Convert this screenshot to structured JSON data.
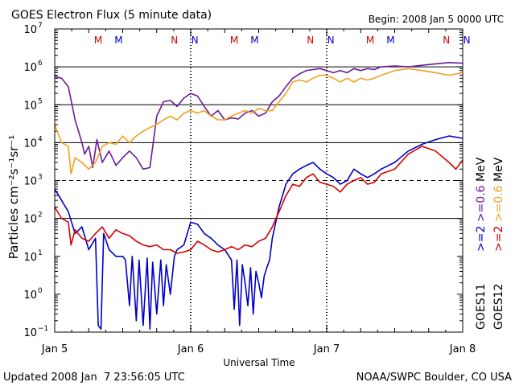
{
  "chart_data": {
    "type": "line",
    "title": "GOES Electron Flux (5 minute data)",
    "begin_label": "Begin: 2008 Jan 5 0000 UTC",
    "xlabel": "Universal Time",
    "ylabel": "Particles cm⁻²s⁻¹sr⁻¹",
    "footer_left": "Updated 2008 Jan  7 23:56:05 UTC",
    "footer_right": "NOAA/SWPC Boulder, CO USA",
    "y_scale": "log",
    "ylim": [
      0.1,
      10000000
    ],
    "xlim": [
      0,
      3
    ],
    "x_ticks": [
      {
        "x": 0,
        "label": "Jan 5"
      },
      {
        "x": 1,
        "label": "Jan 6"
      },
      {
        "x": 2,
        "label": "Jan 7"
      },
      {
        "x": 3,
        "label": "Jan 8"
      }
    ],
    "y_ticks": [
      {
        "exp": -1,
        "base": "10",
        "sup": "−1"
      },
      {
        "exp": 0,
        "base": "10",
        "sup": "0"
      },
      {
        "exp": 1,
        "base": "10",
        "sup": "1"
      },
      {
        "exp": 2,
        "base": "10",
        "sup": "2"
      },
      {
        "exp": 3,
        "base": "10",
        "sup": "3"
      },
      {
        "exp": 4,
        "base": "10",
        "sup": "4"
      },
      {
        "exp": 5,
        "base": "10",
        "sup": "5"
      },
      {
        "exp": 6,
        "base": "10",
        "sup": "6"
      },
      {
        "exp": 7,
        "base": "10",
        "sup": "7"
      }
    ],
    "grid": "solid at 10^2, 10^4, 10^5, 10^6; dashed at 10^3",
    "markers": [
      {
        "x": 0.32,
        "label": "M",
        "color": "#d40000"
      },
      {
        "x": 0.47,
        "label": "M",
        "color": "#0000c8"
      },
      {
        "x": 0.88,
        "label": "N",
        "color": "#d40000"
      },
      {
        "x": 1.03,
        "label": "N",
        "color": "#0000c8"
      },
      {
        "x": 1.32,
        "label": "M",
        "color": "#d40000"
      },
      {
        "x": 1.47,
        "label": "M",
        "color": "#0000c8"
      },
      {
        "x": 1.88,
        "label": "N",
        "color": "#d40000"
      },
      {
        "x": 2.03,
        "label": "N",
        "color": "#0000c8"
      },
      {
        "x": 2.32,
        "label": "M",
        "color": "#d40000"
      },
      {
        "x": 2.47,
        "label": "M",
        "color": "#0000c8"
      },
      {
        "x": 2.88,
        "label": "N",
        "color": "#d40000"
      },
      {
        "x": 3.03,
        "label": "N",
        "color": "#0000c8"
      }
    ],
    "legend": {
      "placement": "right, vertical",
      "columns": [
        {
          "satellite": "GOES11",
          "items": [
            {
              "text": ">=2",
              "color": "#0000c8"
            },
            {
              "text": ">=0.6",
              "color": "#6a1b9a"
            }
          ]
        },
        {
          "satellite": "GOES12",
          "items": [
            {
              "text": ">=2",
              "color": "#d40000"
            },
            {
              "text": ">=0.6",
              "color": "#f0a020"
            }
          ]
        }
      ],
      "unit": "MeV"
    },
    "series": [
      {
        "color": "#6a1b9a",
        "points": [
          [
            0,
            560000.0
          ],
          [
            0.05,
            500000.0
          ],
          [
            0.1,
            300000.0
          ],
          [
            0.15,
            40000.0
          ],
          [
            0.2,
            10000.0
          ],
          [
            0.22,
            5000.0
          ],
          [
            0.25,
            8000.0
          ],
          [
            0.28,
            2200.0
          ],
          [
            0.31,
            12000.0
          ],
          [
            0.35,
            3000.0
          ],
          [
            0.4,
            6000.0
          ],
          [
            0.45,
            2500.0
          ],
          [
            0.5,
            4000.0
          ],
          [
            0.55,
            6000.0
          ],
          [
            0.6,
            4000.0
          ],
          [
            0.65,
            2000.0
          ],
          [
            0.7,
            2200.0
          ],
          [
            0.75,
            50000.0
          ],
          [
            0.8,
            120000.0
          ],
          [
            0.85,
            130000.0
          ],
          [
            0.9,
            90000.0
          ],
          [
            0.95,
            150000.0
          ],
          [
            1,
            200000.0
          ],
          [
            1.05,
            170000.0
          ],
          [
            1.1,
            90000.0
          ],
          [
            1.15,
            50000.0
          ],
          [
            1.2,
            70000.0
          ],
          [
            1.25,
            40000.0
          ],
          [
            1.3,
            45000.0
          ],
          [
            1.35,
            42000.0
          ],
          [
            1.4,
            60000.0
          ],
          [
            1.45,
            70000.0
          ],
          [
            1.5,
            50000.0
          ],
          [
            1.55,
            60000.0
          ],
          [
            1.6,
            120000.0
          ],
          [
            1.65,
            170000.0
          ],
          [
            1.7,
            300000.0
          ],
          [
            1.75,
            500000.0
          ],
          [
            1.8,
            650000.0
          ],
          [
            1.85,
            800000.0
          ],
          [
            1.9,
            850000.0
          ],
          [
            1.95,
            900000.0
          ],
          [
            2,
            800000.0
          ],
          [
            2.05,
            700000.0
          ],
          [
            2.1,
            800000.0
          ],
          [
            2.15,
            700000.0
          ],
          [
            2.2,
            900000.0
          ],
          [
            2.25,
            800000.0
          ],
          [
            2.3,
            900000.0
          ],
          [
            2.35,
            850000.0
          ],
          [
            2.4,
            1000000.0
          ],
          [
            2.5,
            1050000.0
          ],
          [
            2.6,
            1000000.0
          ],
          [
            2.7,
            1100000.0
          ],
          [
            2.8,
            1200000.0
          ],
          [
            2.9,
            1300000.0
          ],
          [
            3,
            1250000.0
          ]
        ]
      },
      {
        "color": "#f0a020",
        "points": [
          [
            0,
            30000.0
          ],
          [
            0.05,
            10000.0
          ],
          [
            0.1,
            8000.0
          ],
          [
            0.12,
            1500.0
          ],
          [
            0.15,
            4000.0
          ],
          [
            0.2,
            3000.0
          ],
          [
            0.25,
            2000.0
          ],
          [
            0.3,
            3000.0
          ],
          [
            0.35,
            8000.0
          ],
          [
            0.4,
            10000.0
          ],
          [
            0.45,
            9000.0
          ],
          [
            0.5,
            15000.0
          ],
          [
            0.55,
            10000.0
          ],
          [
            0.6,
            15000.0
          ],
          [
            0.65,
            20000.0
          ],
          [
            0.7,
            25000.0
          ],
          [
            0.75,
            30000.0
          ],
          [
            0.8,
            40000.0
          ],
          [
            0.85,
            50000.0
          ],
          [
            0.9,
            40000.0
          ],
          [
            0.95,
            60000.0
          ],
          [
            1,
            70000.0
          ],
          [
            1.05,
            60000.0
          ],
          [
            1.1,
            70000.0
          ],
          [
            1.15,
            50000.0
          ],
          [
            1.2,
            40000.0
          ],
          [
            1.25,
            40000.0
          ],
          [
            1.3,
            50000.0
          ],
          [
            1.35,
            60000.0
          ],
          [
            1.4,
            70000.0
          ],
          [
            1.45,
            60000.0
          ],
          [
            1.5,
            80000.0
          ],
          [
            1.55,
            70000.0
          ],
          [
            1.6,
            70000.0
          ],
          [
            1.65,
            120000.0
          ],
          [
            1.7,
            200000.0
          ],
          [
            1.75,
            400000.0
          ],
          [
            1.8,
            450000.0
          ],
          [
            1.85,
            400000.0
          ],
          [
            1.9,
            500000.0
          ],
          [
            1.95,
            600000.0
          ],
          [
            2,
            600000.0
          ],
          [
            2.05,
            500000.0
          ],
          [
            2.1,
            400000.0
          ],
          [
            2.15,
            500000.0
          ],
          [
            2.2,
            400000.0
          ],
          [
            2.25,
            500000.0
          ],
          [
            2.3,
            450000.0
          ],
          [
            2.35,
            500000.0
          ],
          [
            2.4,
            600000.0
          ],
          [
            2.5,
            800000.0
          ],
          [
            2.6,
            900000.0
          ],
          [
            2.7,
            800000.0
          ],
          [
            2.8,
            700000.0
          ],
          [
            2.9,
            600000.0
          ],
          [
            3,
            700000.0
          ]
        ]
      },
      {
        "color": "#0000c8",
        "points": [
          [
            0,
            600
          ],
          [
            0.05,
            300
          ],
          [
            0.1,
            150
          ],
          [
            0.15,
            40
          ],
          [
            0.2,
            60
          ],
          [
            0.25,
            15
          ],
          [
            0.3,
            30
          ],
          [
            0.32,
            0.15
          ],
          [
            0.34,
            0.12
          ],
          [
            0.36,
            40
          ],
          [
            0.4,
            15
          ],
          [
            0.45,
            10
          ],
          [
            0.5,
            10
          ],
          [
            0.52,
            8
          ],
          [
            0.55,
            0.5
          ],
          [
            0.57,
            10
          ],
          [
            0.6,
            0.2
          ],
          [
            0.62,
            8
          ],
          [
            0.65,
            0.15
          ],
          [
            0.68,
            9
          ],
          [
            0.7,
            0.12
          ],
          [
            0.72,
            7
          ],
          [
            0.75,
            0.3
          ],
          [
            0.78,
            8
          ],
          [
            0.8,
            0.5
          ],
          [
            0.82,
            6
          ],
          [
            0.85,
            1
          ],
          [
            0.88,
            10
          ],
          [
            0.9,
            15
          ],
          [
            0.95,
            20
          ],
          [
            1,
            80
          ],
          [
            1.05,
            70
          ],
          [
            1.1,
            40
          ],
          [
            1.15,
            30
          ],
          [
            1.2,
            20
          ],
          [
            1.25,
            15
          ],
          [
            1.3,
            8
          ],
          [
            1.32,
            0.4
          ],
          [
            1.34,
            8
          ],
          [
            1.36,
            0.15
          ],
          [
            1.38,
            6
          ],
          [
            1.4,
            2
          ],
          [
            1.42,
            0.5
          ],
          [
            1.44,
            5
          ],
          [
            1.46,
            0.3
          ],
          [
            1.48,
            4
          ],
          [
            1.5,
            2
          ],
          [
            1.52,
            0.8
          ],
          [
            1.54,
            3
          ],
          [
            1.56,
            5
          ],
          [
            1.58,
            8
          ],
          [
            1.6,
            30
          ],
          [
            1.65,
            200
          ],
          [
            1.7,
            800
          ],
          [
            1.75,
            1500
          ],
          [
            1.8,
            2000
          ],
          [
            1.85,
            2500
          ],
          [
            1.9,
            3000
          ],
          [
            1.95,
            2000
          ],
          [
            2,
            1500
          ],
          [
            2.05,
            1200
          ],
          [
            2.1,
            800
          ],
          [
            2.15,
            1000
          ],
          [
            2.2,
            2000
          ],
          [
            2.25,
            1500
          ],
          [
            2.3,
            1200
          ],
          [
            2.35,
            1500
          ],
          [
            2.4,
            2000
          ],
          [
            2.5,
            3000
          ],
          [
            2.6,
            6000
          ],
          [
            2.7,
            9000
          ],
          [
            2.8,
            12000
          ],
          [
            2.9,
            15000
          ],
          [
            3,
            13000
          ]
        ]
      },
      {
        "color": "#d40000",
        "points": [
          [
            0,
            200
          ],
          [
            0.05,
            100
          ],
          [
            0.1,
            80
          ],
          [
            0.12,
            20
          ],
          [
            0.15,
            50
          ],
          [
            0.2,
            30
          ],
          [
            0.25,
            25
          ],
          [
            0.3,
            40
          ],
          [
            0.35,
            60
          ],
          [
            0.4,
            30
          ],
          [
            0.45,
            50
          ],
          [
            0.5,
            40
          ],
          [
            0.55,
            35
          ],
          [
            0.6,
            25
          ],
          [
            0.65,
            20
          ],
          [
            0.7,
            18
          ],
          [
            0.75,
            20
          ],
          [
            0.8,
            15
          ],
          [
            0.85,
            15
          ],
          [
            0.9,
            12
          ],
          [
            0.95,
            13
          ],
          [
            1,
            15
          ],
          [
            1.05,
            25
          ],
          [
            1.1,
            20
          ],
          [
            1.15,
            15
          ],
          [
            1.2,
            13
          ],
          [
            1.25,
            15
          ],
          [
            1.3,
            18
          ],
          [
            1.35,
            15
          ],
          [
            1.4,
            20
          ],
          [
            1.45,
            18
          ],
          [
            1.5,
            25
          ],
          [
            1.55,
            30
          ],
          [
            1.6,
            60
          ],
          [
            1.65,
            150
          ],
          [
            1.7,
            400
          ],
          [
            1.75,
            800
          ],
          [
            1.8,
            700
          ],
          [
            1.85,
            1200
          ],
          [
            1.9,
            1500
          ],
          [
            1.95,
            900
          ],
          [
            2,
            800
          ],
          [
            2.05,
            700
          ],
          [
            2.1,
            500
          ],
          [
            2.15,
            800
          ],
          [
            2.2,
            1000
          ],
          [
            2.25,
            1200
          ],
          [
            2.3,
            800
          ],
          [
            2.35,
            900
          ],
          [
            2.4,
            1500
          ],
          [
            2.5,
            2000
          ],
          [
            2.6,
            5000
          ],
          [
            2.7,
            8000
          ],
          [
            2.8,
            6000
          ],
          [
            2.9,
            3000
          ],
          [
            2.95,
            2000
          ],
          [
            3,
            3500
          ]
        ]
      }
    ]
  }
}
